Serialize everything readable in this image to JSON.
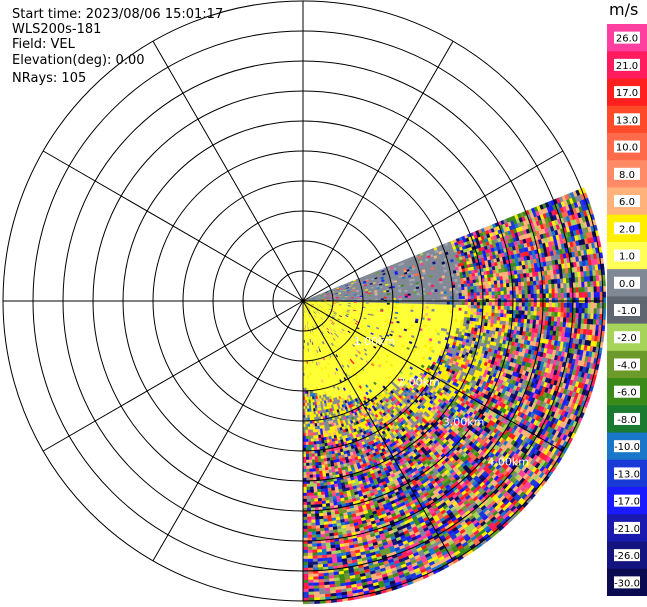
{
  "info": {
    "start_time": "Start time: 2023/08/06 15:01:17",
    "instrument": "WLS200s-181",
    "field": "Field: VEL",
    "elevation": "Elevation(deg): 0.00",
    "nrays": "NRays: 105"
  },
  "range_labels": [
    "1.00km",
    "2.00km",
    "3.00km",
    "4.00km",
    "5.00km"
  ],
  "colorbar": {
    "unit": "m/s",
    "ticks": [
      "26.0",
      "21.0",
      "17.0",
      "13.0",
      "10.0",
      "8.0",
      "6.0",
      "2.0",
      "1.0",
      "0.0",
      "-1.0",
      "-2.0",
      "-4.0",
      "-6.0",
      "-8.0",
      "-10.0",
      "-13.0",
      "-17.0",
      "-21.0",
      "-26.0",
      "-30.0"
    ],
    "colors": [
      "#ff3fa0",
      "#ff1b5e",
      "#ff1f1f",
      "#ff4a2a",
      "#ff6a4a",
      "#ff8a66",
      "#ffb37a",
      "#ffee00",
      "#ffff55",
      "#808896",
      "#606670",
      "#a6d35a",
      "#6b9a2a",
      "#3a8a1a",
      "#1a7a30",
      "#1a76c8",
      "#1a3ad8",
      "#1a1aff",
      "#1a1ab0",
      "#141480",
      "#0a0a50"
    ]
  },
  "scan": {
    "start_azimuth_deg": 68,
    "end_azimuth_deg": 180,
    "max_range_km": 5.0,
    "ring_step_km": 0.5
  }
}
